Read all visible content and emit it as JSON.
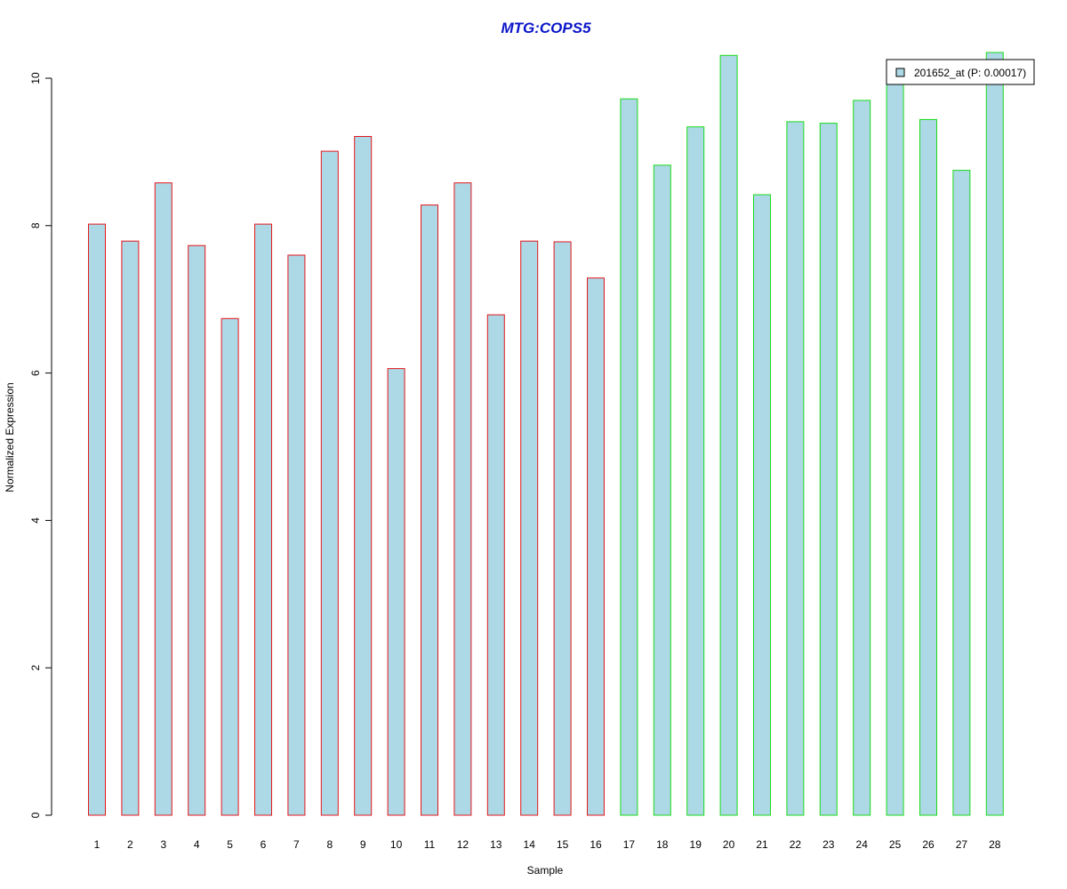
{
  "chart_data": {
    "type": "bar",
    "title": "MTG:COPS5",
    "xlabel": "Sample",
    "ylabel": "Normalized Expression",
    "ylim": [
      0,
      10
    ],
    "yticks": [
      0,
      2,
      4,
      6,
      8,
      10
    ],
    "grid": false,
    "categories": [
      "1",
      "2",
      "3",
      "4",
      "5",
      "6",
      "7",
      "8",
      "9",
      "10",
      "11",
      "12",
      "13",
      "14",
      "15",
      "16",
      "17",
      "18",
      "19",
      "20",
      "21",
      "22",
      "23",
      "24",
      "25",
      "26",
      "27",
      "28"
    ],
    "series": [
      {
        "name": "201652_at (P: 0.00017)",
        "values": [
          8.02,
          7.79,
          8.58,
          7.73,
          6.74,
          8.02,
          7.6,
          9.01,
          9.21,
          6.06,
          8.28,
          8.58,
          6.79,
          7.79,
          7.78,
          7.29,
          9.72,
          8.82,
          9.34,
          10.31,
          8.42,
          9.41,
          9.39,
          9.7,
          9.96,
          9.44,
          8.75,
          10.35
        ],
        "fill": "#ADD8E6",
        "border_colors": [
          "#E3171C",
          "#E3171C",
          "#E3171C",
          "#E3171C",
          "#E3171C",
          "#E3171C",
          "#E3171C",
          "#E3171C",
          "#E3171C",
          "#E3171C",
          "#E3171C",
          "#E3171C",
          "#E3171C",
          "#E3171C",
          "#E3171C",
          "#E3171C",
          "#1ADB1A",
          "#1ADB1A",
          "#1ADB1A",
          "#1ADB1A",
          "#1ADB1A",
          "#1ADB1A",
          "#1ADB1A",
          "#1ADB1A",
          "#1ADB1A",
          "#1ADB1A",
          "#1ADB1A",
          "#1ADB1A"
        ]
      }
    ],
    "legend": {
      "position": "top-right",
      "label": "201652_at (P: 0.00017)"
    },
    "title_color": "#0A14C8"
  }
}
